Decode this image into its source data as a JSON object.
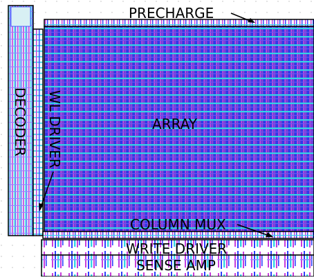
{
  "labels": {
    "precharge": "PRECHARGE",
    "array": "ARRAY",
    "decoder": "DECODER",
    "wl_driver": "WL DRIVER",
    "column_mux": "COLUMN MUX",
    "write_driver": "WRITE DRIVER",
    "sense_amp": "SENSE AMP"
  },
  "colors": {
    "array_fill": "#4a3fd6",
    "metal_blue": "#2f3fff",
    "metal_magenta": "#c83cdc",
    "poly_cyan": "#32d4e6",
    "outline": "#000000",
    "background": "#ffffff"
  }
}
